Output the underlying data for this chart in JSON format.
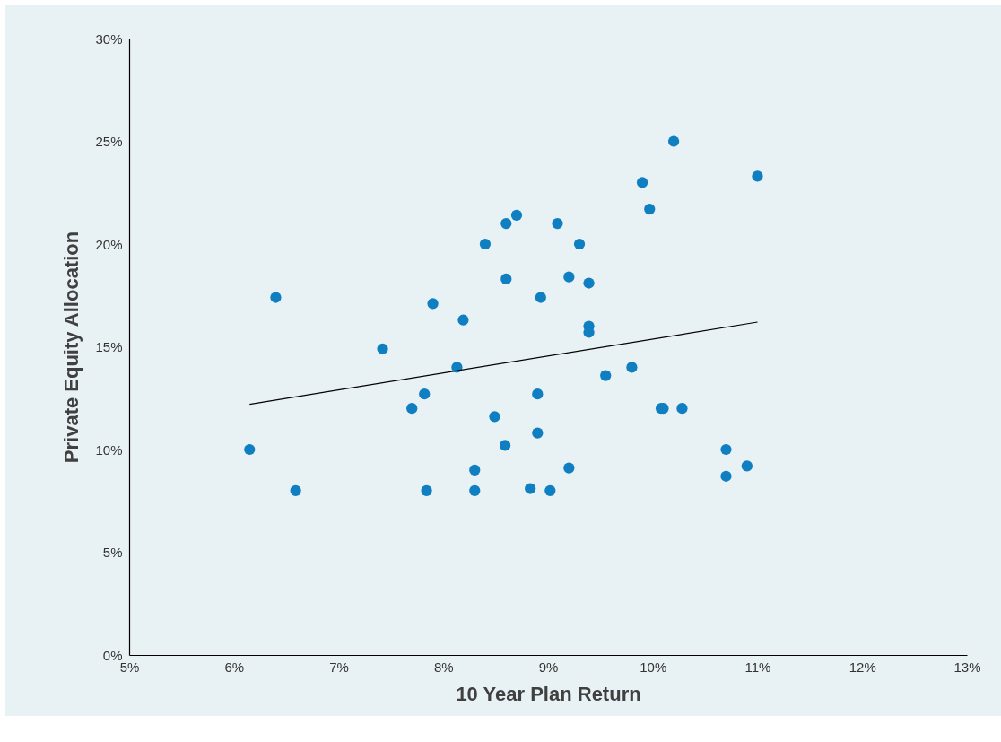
{
  "chart_data": {
    "type": "scatter",
    "xlabel": "10 Year Plan Return",
    "ylabel": "Private Equity Allocation",
    "xlim": [
      5,
      13
    ],
    "ylim": [
      0,
      30
    ],
    "xticks": [
      {
        "value": 5,
        "label": "5%"
      },
      {
        "value": 6,
        "label": "6%"
      },
      {
        "value": 7,
        "label": "7%"
      },
      {
        "value": 8,
        "label": "8%"
      },
      {
        "value": 9,
        "label": "9%"
      },
      {
        "value": 10,
        "label": "10%"
      },
      {
        "value": 11,
        "label": "11%"
      },
      {
        "value": 12,
        "label": "12%"
      },
      {
        "value": 13,
        "label": "13%"
      }
    ],
    "yticks": [
      {
        "value": 0,
        "label": "0%"
      },
      {
        "value": 5,
        "label": "5%"
      },
      {
        "value": 10,
        "label": "10%"
      },
      {
        "value": 15,
        "label": "15%"
      },
      {
        "value": 20,
        "label": "20%"
      },
      {
        "value": 25,
        "label": "25%"
      },
      {
        "value": 30,
        "label": "30%"
      }
    ],
    "grid": false,
    "marker": "circle",
    "series": [
      {
        "color": "#0f7fc1",
        "x": [
          6.15,
          6.4,
          6.59,
          7.42,
          7.7,
          7.82,
          7.84,
          7.9,
          8.13,
          8.19,
          8.3,
          8.3,
          8.4,
          8.49,
          8.59,
          8.6,
          8.6,
          8.7,
          8.83,
          8.9,
          8.9,
          8.93,
          9.02,
          9.09,
          9.2,
          9.2,
          9.3,
          9.39,
          9.39,
          9.39,
          9.55,
          9.8,
          9.9,
          9.97,
          10.08,
          10.1,
          10.2,
          10.28,
          10.7,
          10.7,
          10.9,
          11.0
        ],
        "values": [
          10.0,
          17.4,
          8.0,
          14.9,
          12.0,
          12.7,
          8.0,
          17.1,
          14.0,
          16.3,
          9.0,
          8.0,
          20.0,
          11.6,
          10.2,
          18.3,
          21.0,
          21.4,
          8.1,
          12.7,
          10.8,
          17.4,
          8.0,
          21.0,
          9.1,
          18.4,
          20.0,
          18.1,
          16.0,
          15.7,
          13.6,
          14.0,
          23.0,
          21.7,
          12.0,
          12.0,
          25.0,
          12.0,
          10.0,
          8.7,
          9.2,
          23.3
        ]
      },
      {
        "type": "line",
        "marker": "none",
        "color": "#000000",
        "x": [
          6.15,
          11.0
        ],
        "values": [
          12.2,
          16.2
        ]
      }
    ]
  }
}
